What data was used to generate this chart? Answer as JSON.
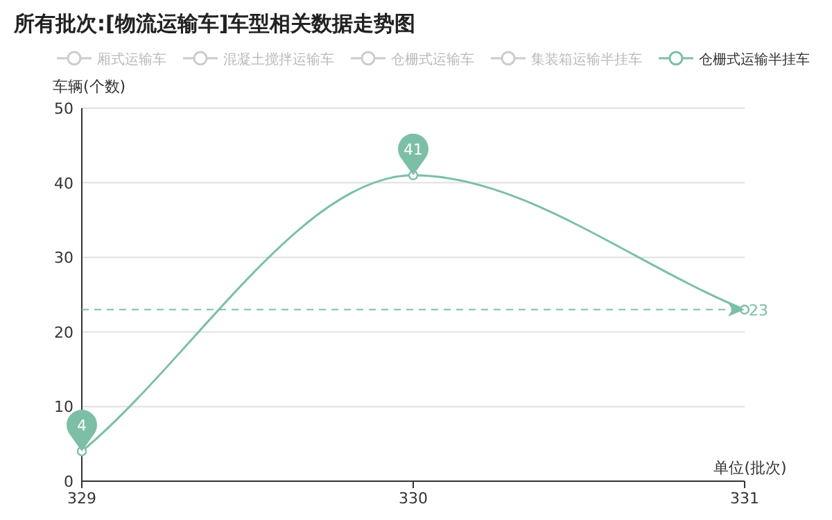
{
  "chart_data": {
    "type": "line",
    "title": "所有批次:[物流运输车]车型相关数据走势图",
    "ylabel": "车辆(个数)",
    "xlabel": "单位(批次)",
    "categories": [
      "329",
      "330",
      "331"
    ],
    "series": [
      {
        "name": "厢式运输车",
        "color": "#cccccc",
        "values": [
          null,
          null,
          null
        ]
      },
      {
        "name": "混凝土搅拌运输车",
        "color": "#cccccc",
        "values": [
          null,
          null,
          null
        ]
      },
      {
        "name": "仓栅式运输车",
        "color": "#cccccc",
        "values": [
          null,
          null,
          null
        ]
      },
      {
        "name": "集装箱运输半挂车",
        "color": "#cccccc",
        "values": [
          null,
          null,
          null
        ]
      },
      {
        "name": "仓栅式运输半挂车",
        "color": "#7cbfa6",
        "values": [
          4,
          41,
          23
        ]
      }
    ],
    "ylim": [
      0,
      50
    ],
    "yticks": [
      0,
      10,
      20,
      30,
      40,
      50
    ],
    "grid": "y",
    "legend": "top",
    "marker": "circle",
    "line_style": "solid",
    "ref_lines": [
      {
        "axis": "y",
        "value": 23,
        "label": "23",
        "line_style": "dashed"
      }
    ],
    "annotations": [
      {
        "text": "41",
        "x": "330",
        "y": 41
      },
      {
        "text": "4",
        "x": "329",
        "y": 4
      }
    ]
  }
}
